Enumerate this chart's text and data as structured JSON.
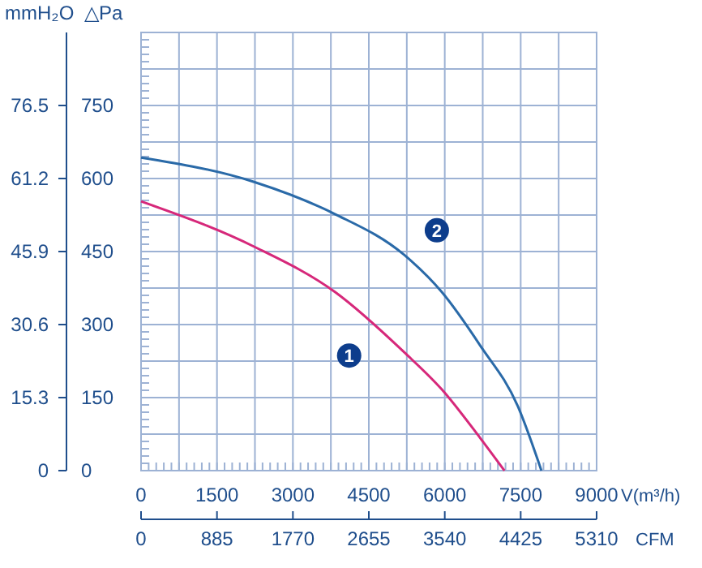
{
  "chart_data": {
    "type": "line",
    "xlabel": "V(m³/h)",
    "ylabel": "△Pa",
    "y2label": "mmH₂O",
    "x2label": "CFM",
    "xlim": [
      0,
      9000
    ],
    "xticks": [
      0,
      1500,
      3000,
      4500,
      6000,
      7500,
      9000
    ],
    "x2lim": [
      0,
      5310
    ],
    "x2ticks": [
      0,
      885,
      1770,
      2655,
      3540,
      4425,
      5310
    ],
    "ylim": [
      0,
      900
    ],
    "yticks": [
      0,
      150,
      300,
      450,
      600,
      750
    ],
    "y2lim": [
      0,
      91.8
    ],
    "y2ticks": [
      0,
      15.3,
      30.6,
      45.9,
      61.2,
      76.5
    ],
    "grid": true,
    "marker": "none",
    "line_style": "solid",
    "series": [
      {
        "name": "1",
        "color": "#d6287a",
        "x": [
          0,
          2234,
          3830,
          5200,
          5940,
          6700,
          7180
        ],
        "values": [
          553,
          460,
          367,
          243,
          167,
          67,
          0
        ]
      },
      {
        "name": "2",
        "color": "#2a6aa8",
        "x": [
          0,
          2234,
          3830,
          5200,
          5940,
          6700,
          7440,
          7910
        ],
        "values": [
          643,
          593,
          527,
          443,
          367,
          257,
          133,
          0
        ]
      }
    ]
  }
}
